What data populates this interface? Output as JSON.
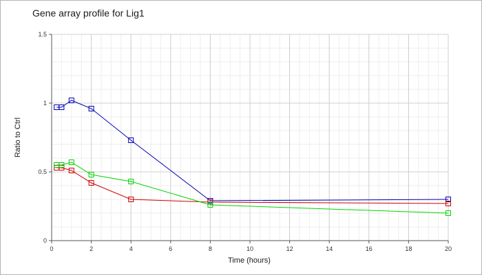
{
  "chart_data": {
    "type": "line",
    "title": "Gene array profile for Lig1",
    "xlabel": "Time (hours)",
    "ylabel": "Ratio to Ctrl",
    "xlim": [
      0,
      20
    ],
    "ylim": [
      0,
      1.5
    ],
    "x_ticks": [
      "0",
      "2",
      "4",
      "6",
      "8",
      "10",
      "12",
      "14",
      "16",
      "18",
      "20"
    ],
    "y_ticks": [
      "0",
      "0.5",
      "1",
      "1.5"
    ],
    "x_tick_values": [
      0,
      2,
      4,
      6,
      8,
      10,
      12,
      14,
      16,
      18,
      20
    ],
    "y_tick_values": [
      0,
      0.5,
      1,
      1.5
    ],
    "grid": true,
    "marker": "square",
    "series": [
      {
        "color": "#0000b4",
        "x": [
          0.25,
          0.5,
          1,
          2,
          4,
          8,
          20
        ],
        "y": [
          0.97,
          0.97,
          1.02,
          0.96,
          0.73,
          0.29,
          0.3
        ]
      },
      {
        "color": "#d40000",
        "x": [
          0.25,
          0.5,
          1,
          2,
          4,
          8,
          20
        ],
        "y": [
          0.53,
          0.53,
          0.51,
          0.42,
          0.3,
          0.28,
          0.27
        ]
      },
      {
        "color": "#00d400",
        "x": [
          0.25,
          0.5,
          1,
          2,
          4,
          8,
          20
        ],
        "y": [
          0.55,
          0.55,
          0.57,
          0.48,
          0.43,
          0.26,
          0.2
        ]
      }
    ]
  }
}
